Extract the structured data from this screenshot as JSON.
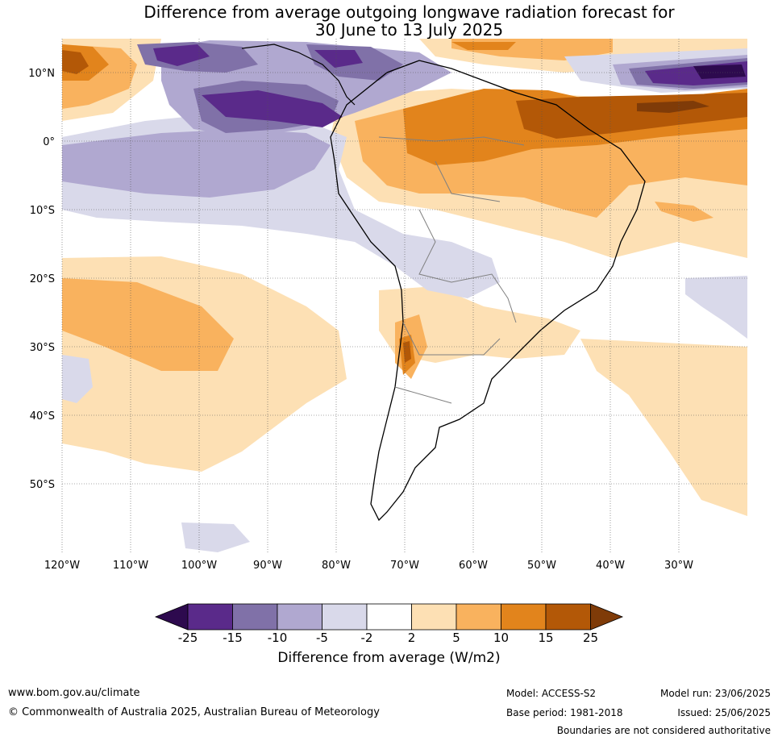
{
  "title": {
    "line1": "Difference from average outgoing longwave radiation forecast for",
    "line2": "30 June to 13 July 2025"
  },
  "axes": {
    "lat_labels": [
      "10°N",
      "0°",
      "10°S",
      "20°S",
      "30°S",
      "40°S",
      "50°S"
    ],
    "lon_labels": [
      "120°W",
      "110°W",
      "100°W",
      "90°W",
      "80°W",
      "70°W",
      "60°W",
      "50°W",
      "40°W",
      "30°W"
    ]
  },
  "colorbar": {
    "ticks": [
      "-25",
      "-15",
      "-10",
      "-5",
      "-2",
      "2",
      "5",
      "10",
      "15",
      "25"
    ],
    "label": "Difference from average (W/m2)",
    "colors": [
      "#2d0a4e",
      "#5a2a8a",
      "#8071a8",
      "#b0a8d0",
      "#d9d9ea",
      "#ffffff",
      "#fde0b4",
      "#f9b25e",
      "#e2841c",
      "#b35807",
      "#7f3b08"
    ]
  },
  "footer": {
    "url": "www.bom.gov.au/climate",
    "copyright": "© Commonwealth of Australia 2025, Australian Bureau of Meteorology",
    "model": "Model: ACCESS-S2",
    "base_period": "Base period: 1981-2018",
    "model_run": "Model run: 23/06/2025",
    "issued": "Issued: 25/06/2025",
    "disclaimer": "Boundaries are not considered authoritative"
  }
}
